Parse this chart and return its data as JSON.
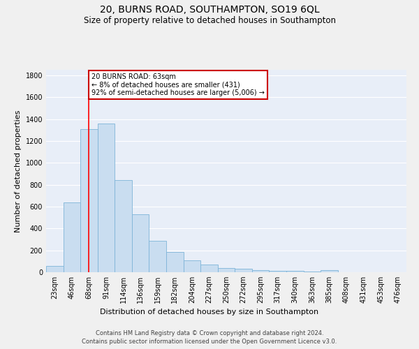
{
  "title": "20, BURNS ROAD, SOUTHAMPTON, SO19 6QL",
  "subtitle": "Size of property relative to detached houses in Southampton",
  "xlabel": "Distribution of detached houses by size in Southampton",
  "ylabel": "Number of detached properties",
  "footnote1": "Contains HM Land Registry data © Crown copyright and database right 2024.",
  "footnote2": "Contains public sector information licensed under the Open Government Licence v3.0.",
  "categories": [
    "23sqm",
    "46sqm",
    "68sqm",
    "91sqm",
    "114sqm",
    "136sqm",
    "159sqm",
    "182sqm",
    "204sqm",
    "227sqm",
    "250sqm",
    "272sqm",
    "295sqm",
    "317sqm",
    "340sqm",
    "363sqm",
    "385sqm",
    "408sqm",
    "431sqm",
    "453sqm",
    "476sqm"
  ],
  "values": [
    55,
    638,
    1305,
    1360,
    845,
    530,
    285,
    185,
    110,
    70,
    38,
    35,
    22,
    15,
    10,
    8,
    20,
    0,
    0,
    0,
    0
  ],
  "bar_color": "#c9ddf0",
  "bar_edge_color": "#7eb4d8",
  "background_color": "#e8eef8",
  "grid_color": "#ffffff",
  "red_line_x": 2,
  "annotation_text": "20 BURNS ROAD: 63sqm\n← 8% of detached houses are smaller (431)\n92% of semi-detached houses are larger (5,006) →",
  "annotation_box_color": "#ffffff",
  "annotation_box_edge": "#cc0000",
  "ylim": [
    0,
    1850
  ],
  "yticks": [
    0,
    200,
    400,
    600,
    800,
    1000,
    1200,
    1400,
    1600,
    1800
  ],
  "title_fontsize": 10,
  "subtitle_fontsize": 8.5,
  "axis_fontsize": 8,
  "tick_fontsize": 7,
  "footnote_fontsize": 6
}
